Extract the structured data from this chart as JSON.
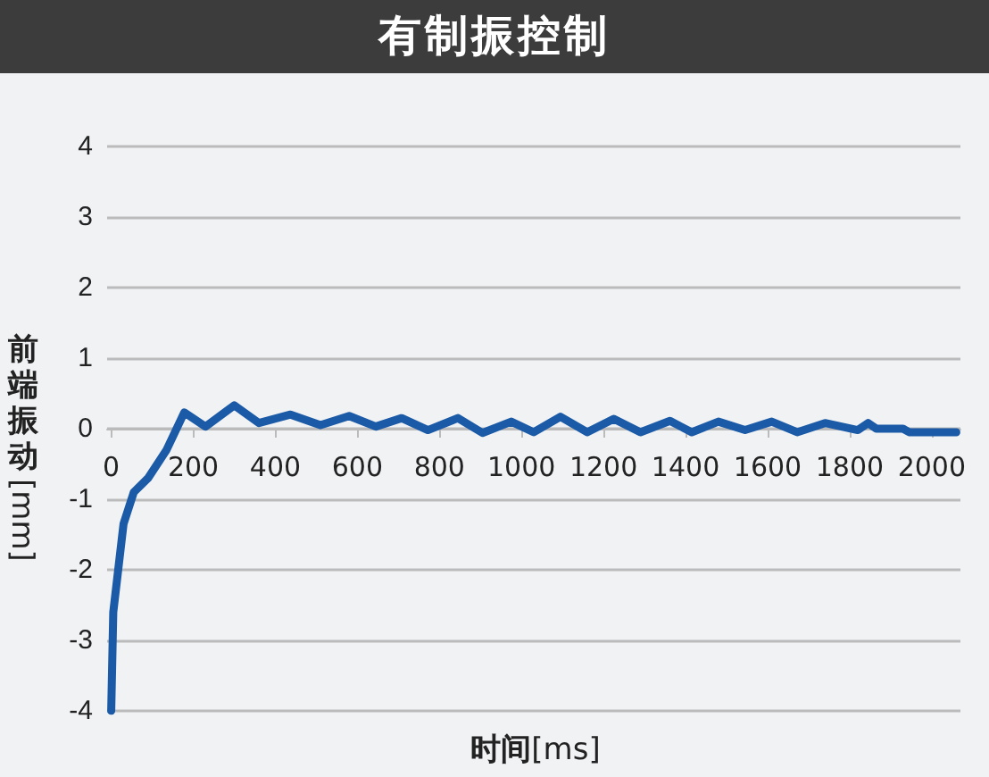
{
  "chart_data": {
    "type": "line",
    "title": "有制振控制",
    "xlabel": "时间[ms]",
    "ylabel": "前端振动[mm]",
    "xlim": [
      -10,
      2070
    ],
    "xticks": [
      0,
      200,
      400,
      600,
      800,
      1000,
      1200,
      1400,
      1600,
      1800,
      2000
    ],
    "ylim": [
      -4,
      4
    ],
    "yticks": [
      -4,
      -3,
      -2,
      -1,
      0,
      1,
      2,
      3,
      4
    ],
    "grid": "y",
    "marker": "none",
    "line_style": "solid",
    "series": [
      {
        "color": "#1a5aa6",
        "x": [
          0,
          5,
          30,
          55,
          90,
          135,
          178,
          230,
          300,
          360,
          437,
          510,
          580,
          645,
          708,
          772,
          845,
          905,
          975,
          1030,
          1095,
          1160,
          1225,
          1290,
          1362,
          1415,
          1480,
          1545,
          1610,
          1672,
          1740,
          1820,
          1845,
          1865,
          1930,
          1945,
          2060
        ],
        "values": [
          -4,
          -2.6,
          -1.35,
          -0.9,
          -0.7,
          -0.3,
          0.23,
          0.03,
          0.33,
          0.08,
          0.2,
          0.05,
          0.18,
          0.03,
          0.15,
          -0.02,
          0.15,
          -0.06,
          0.1,
          -0.05,
          0.17,
          -0.05,
          0.14,
          -0.05,
          0.11,
          -0.05,
          0.1,
          -0.02,
          0.1,
          -0.05,
          0.08,
          -0.02,
          0.08,
          0,
          0,
          -0.05,
          -0.05
        ]
      }
    ]
  }
}
